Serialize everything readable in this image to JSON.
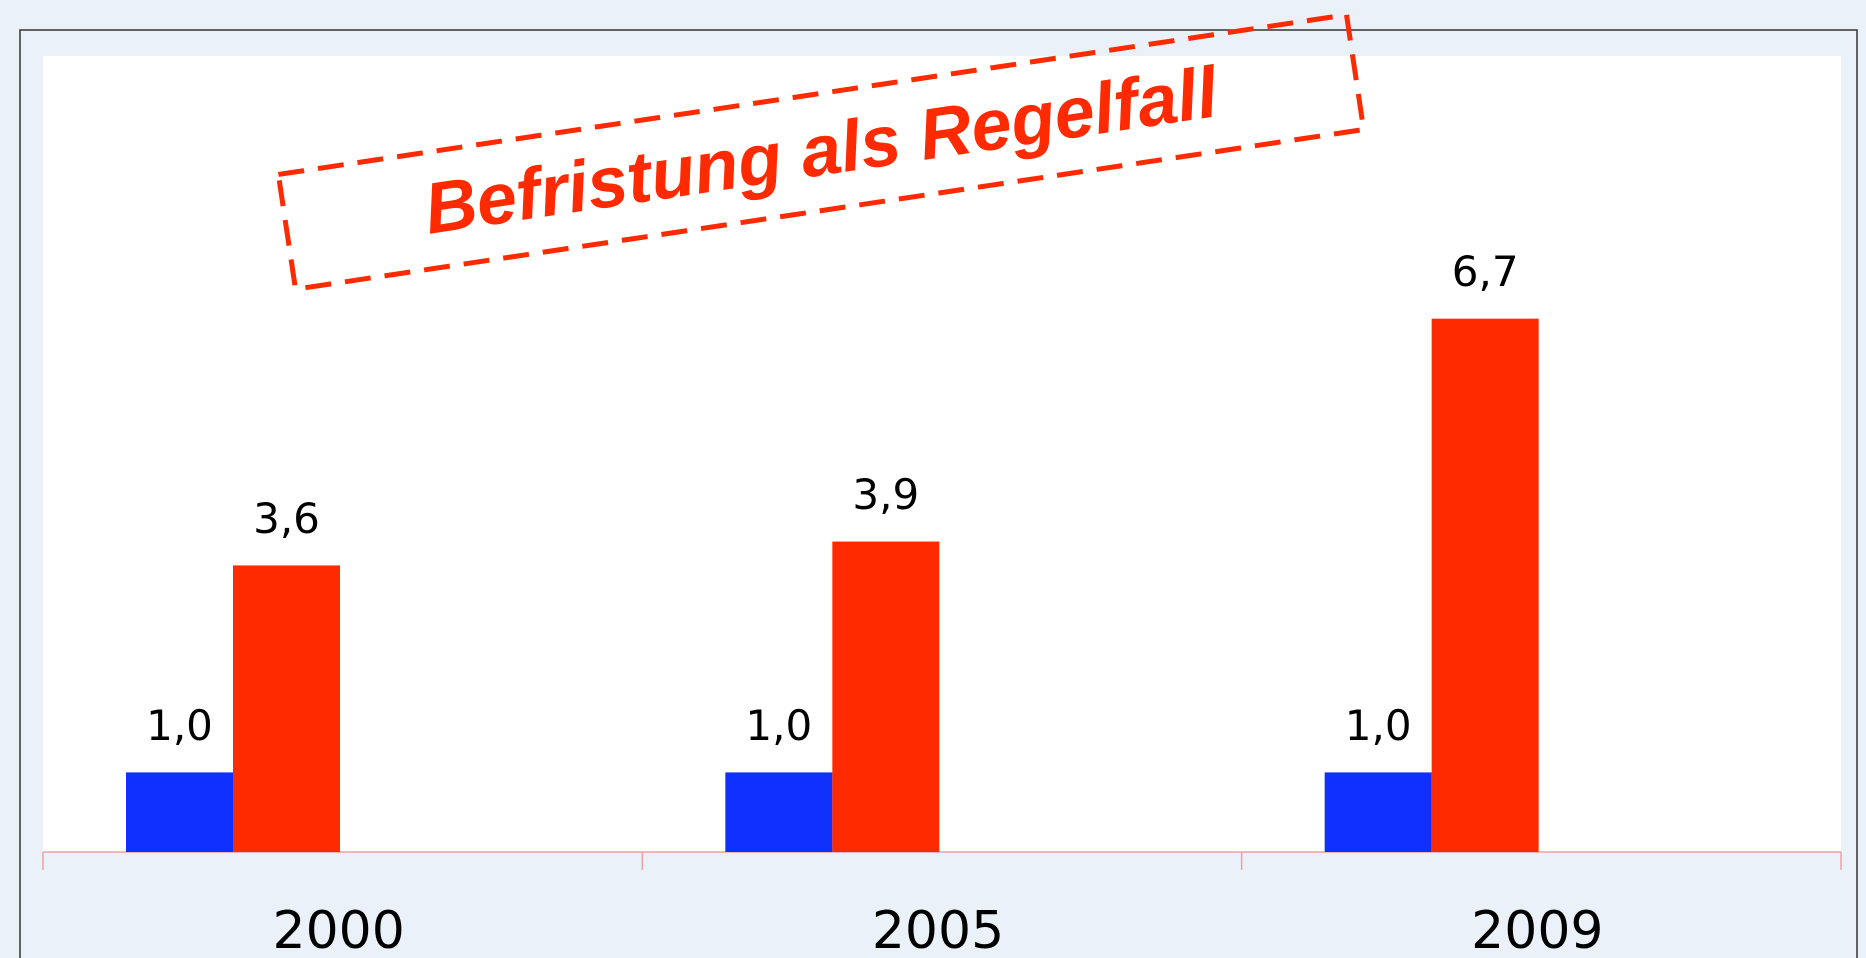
{
  "chart_data": {
    "type": "bar",
    "annotation": "Befristung als Regelfall",
    "categories": [
      "2000",
      "2005",
      "2009"
    ],
    "series": [
      {
        "color": "#1030ff",
        "values": [
          1.0,
          1.0,
          1.0
        ],
        "value_labels": [
          "1,0",
          "1,0",
          "1,0"
        ]
      },
      {
        "color": "#ff2a00",
        "values": [
          3.6,
          3.9,
          6.7
        ],
        "value_labels": [
          "3,6",
          "3,9",
          "6,7"
        ]
      }
    ],
    "ylim": [
      0,
      10
    ]
  }
}
